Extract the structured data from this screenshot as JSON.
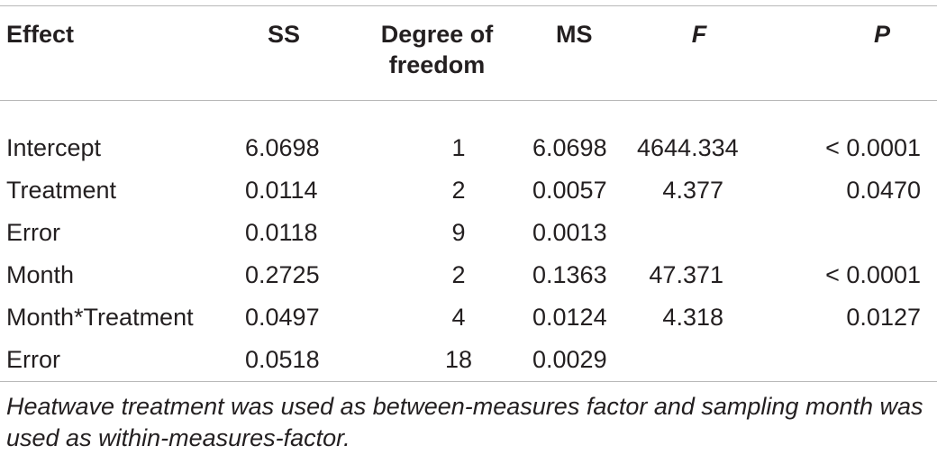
{
  "table": {
    "headers": {
      "effect": "Effect",
      "ss": "SS",
      "df_line1": "Degree of",
      "df_line2": "freedom",
      "ms": "MS",
      "f": "F",
      "p": "P"
    },
    "rows": [
      {
        "effect": "Intercept",
        "ss": "6.0698",
        "df": "1",
        "ms": "6.0698",
        "f": "4644.334",
        "p": "< 0.0001"
      },
      {
        "effect": "Treatment",
        "ss": "0.0114",
        "df": "2",
        "ms": "0.0057",
        "f": "4.377",
        "p": "0.0470"
      },
      {
        "effect": "Error",
        "ss": "0.0118",
        "df": "9",
        "ms": "0.0013",
        "f": "",
        "p": ""
      },
      {
        "effect": "Month",
        "ss": "0.2725",
        "df": "2",
        "ms": "0.1363",
        "f": "47.371",
        "p": "< 0.0001"
      },
      {
        "effect": "Month*Treatment",
        "ss": "0.0497",
        "df": "4",
        "ms": "0.0124",
        "f": "4.318",
        "p": "0.0127"
      },
      {
        "effect": "Error",
        "ss": "0.0518",
        "df": "18",
        "ms": "0.0029",
        "f": "",
        "p": ""
      }
    ]
  },
  "footnote": "Heatwave treatment was used as between-measures factor and sampling month was used as within-measures-factor."
}
